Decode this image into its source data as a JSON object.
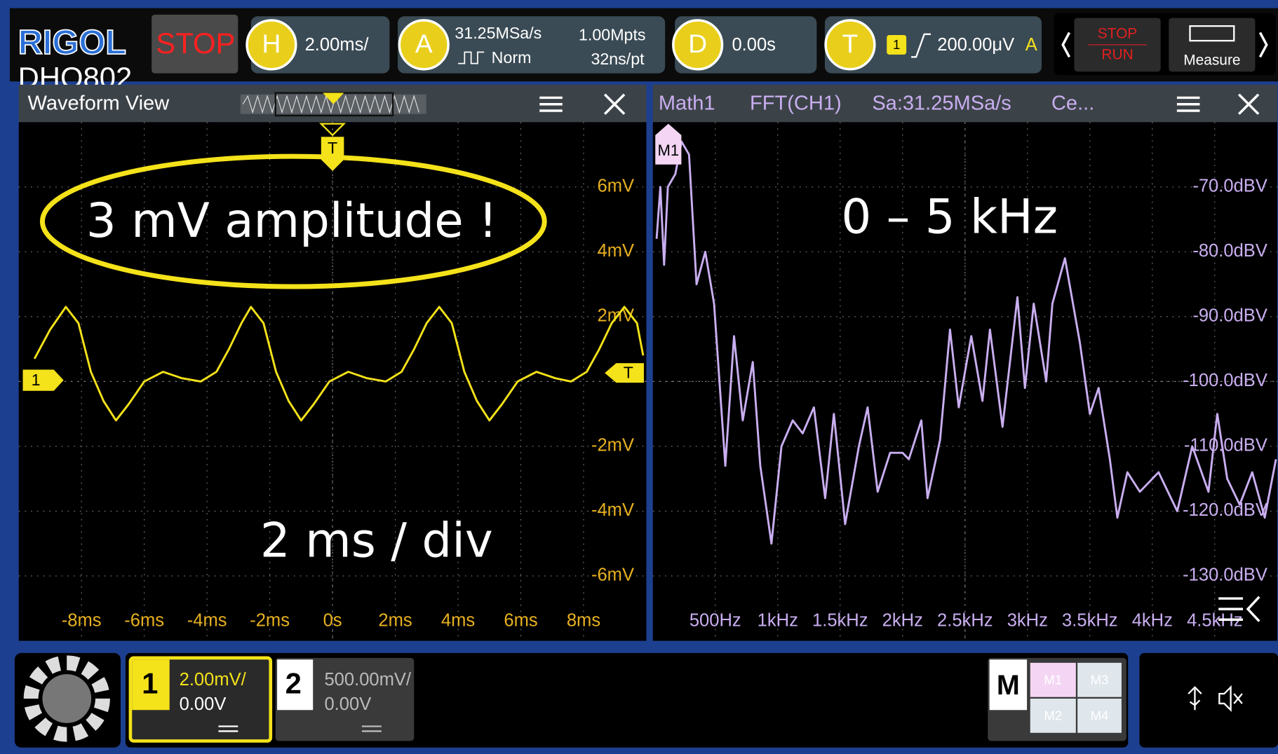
{
  "toolbar": {
    "brand": "RIGOL",
    "model": "DHO802",
    "run_state": "STOP",
    "horizontal": {
      "key": "H",
      "scale": "2.00ms/"
    },
    "acquire": {
      "key": "A",
      "rate": "31.25MSa/s",
      "mode": "Norm",
      "depth": "1.00Mpts",
      "resolution": "32ns/pt"
    },
    "delay": {
      "key": "D",
      "offset": "0.00s"
    },
    "trigger": {
      "key": "T",
      "source": "1",
      "level": "200.00μV",
      "sweep": "A"
    },
    "stop_run": {
      "stop": "STOP",
      "run": "RUN"
    },
    "measure": "Measure"
  },
  "panels": {
    "waveform": {
      "title": "Waveform View"
    },
    "math": {
      "name": "Math1",
      "op": "FFT(CH1)",
      "rate": "Sa:31.25MSa/s",
      "center": "Ce..."
    }
  },
  "markers": {
    "channel": "1",
    "trigger_top": "T",
    "trigger_right": "T",
    "math": "M1"
  },
  "annotations": {
    "amplitude": "3 mV amplitude !",
    "band": "0 – 5 kHz",
    "timebase": "2 ms / div"
  },
  "chart_data": [
    {
      "type": "line",
      "color": "#f4e21a",
      "x": [
        -9.5,
        -9.0,
        -8.5,
        -8.1,
        -7.7,
        -7.3,
        -6.9,
        -6.5,
        -6.0,
        -5.4,
        -4.8,
        -4.2,
        -3.7,
        -3.3,
        -2.9,
        -2.6,
        -2.2,
        -1.8,
        -1.4,
        -1.0,
        -0.6,
        -0.1,
        0.5,
        1.1,
        1.7,
        2.2,
        2.6,
        3.0,
        3.4,
        3.8,
        4.2,
        4.6,
        5.0,
        5.4,
        5.9,
        6.5,
        7.1,
        7.6,
        8.1,
        8.5,
        8.9,
        9.3,
        9.7,
        9.9
      ],
      "values": [
        0.7,
        1.6,
        2.3,
        1.8,
        0.3,
        -0.6,
        -1.2,
        -0.7,
        0,
        0.3,
        0.1,
        0,
        0.3,
        1.0,
        1.8,
        2.3,
        1.8,
        0.3,
        -0.6,
        -1.2,
        -0.7,
        0,
        0.3,
        0.1,
        0,
        0.3,
        1.0,
        1.8,
        2.3,
        1.8,
        0.3,
        -0.6,
        -1.2,
        -0.7,
        0,
        0.3,
        0.1,
        0,
        0.3,
        1.0,
        1.8,
        2.3,
        1.8,
        0.8
      ],
      "xlim": [
        -10,
        10
      ],
      "ylim": [
        -8,
        8
      ],
      "grid": true,
      "xticks": [
        {
          "value": -8,
          "label": "-8ms"
        },
        {
          "value": -6,
          "label": "-6ms"
        },
        {
          "value": -4,
          "label": "-4ms"
        },
        {
          "value": -2,
          "label": "-2ms"
        },
        {
          "value": 0,
          "label": "0s"
        },
        {
          "value": 2,
          "label": "2ms"
        },
        {
          "value": 4,
          "label": "4ms"
        },
        {
          "value": 6,
          "label": "6ms"
        },
        {
          "value": 8,
          "label": "8ms"
        }
      ],
      "yticks": [
        {
          "value": 6,
          "label": "6mV"
        },
        {
          "value": 4,
          "label": "4mV"
        },
        {
          "value": 2,
          "label": "2mV"
        },
        {
          "value": -2,
          "label": "-2mV"
        },
        {
          "value": -4,
          "label": "-4mV"
        },
        {
          "value": -6,
          "label": "-6mV"
        }
      ]
    },
    {
      "type": "line",
      "color": "#c9aef0",
      "x": [
        30,
        60,
        90,
        120,
        180,
        230,
        290,
        350,
        420,
        490,
        580,
        650,
        720,
        800,
        860,
        950,
        1030,
        1120,
        1200,
        1290,
        1380,
        1450,
        1540,
        1650,
        1720,
        1800,
        1900,
        2000,
        2050,
        2150,
        2200,
        2300,
        2380,
        2450,
        2550,
        2640,
        2700,
        2800,
        2920,
        2980,
        3050,
        3150,
        3200,
        3300,
        3420,
        3500,
        3570,
        3660,
        3720,
        3800,
        3900,
        4050,
        4200,
        4320,
        4450,
        4520,
        4600,
        4700,
        4800,
        4900,
        4990
      ],
      "values": [
        -78,
        -70,
        -82,
        -70,
        -68,
        -63,
        -65,
        -85,
        -80,
        -88,
        -113,
        -93,
        -106,
        -97,
        -113,
        -125,
        -110,
        -106,
        -108,
        -104,
        -118,
        -105,
        -122,
        -110,
        -104,
        -117,
        -111,
        -111,
        -112,
        -106,
        -118,
        -109,
        -92,
        -104,
        -93,
        -103,
        -92,
        -107,
        -87,
        -101,
        -88,
        -100,
        -88,
        -81,
        -94,
        -105,
        -101,
        -112,
        -121,
        -114,
        -117,
        -114,
        -120,
        -110,
        -117,
        -105,
        -115,
        -119,
        -114,
        -121,
        -112
      ],
      "xlim": [
        0,
        5000
      ],
      "ylim": [
        -140,
        -60
      ],
      "grid": true,
      "xticks": [
        {
          "value": 500,
          "label": "500Hz"
        },
        {
          "value": 1000,
          "label": "1kHz"
        },
        {
          "value": 1500,
          "label": "1.5kHz"
        },
        {
          "value": 2000,
          "label": "2kHz"
        },
        {
          "value": 2500,
          "label": "2.5kHz"
        },
        {
          "value": 3000,
          "label": "3kHz"
        },
        {
          "value": 3500,
          "label": "3.5kHz"
        },
        {
          "value": 4000,
          "label": "4kHz"
        },
        {
          "value": 4500,
          "label": "4.5kHz"
        }
      ],
      "yticks": [
        {
          "value": -70,
          "label": "-70.0dBV"
        },
        {
          "value": -80,
          "label": "-80.0dBV"
        },
        {
          "value": -90,
          "label": "-90.0dBV"
        },
        {
          "value": -100,
          "label": "-100.0dBV"
        },
        {
          "value": -110,
          "label": "-110.0dBV"
        },
        {
          "value": -120,
          "label": "-120.0dBV"
        },
        {
          "value": -130,
          "label": "-130.0dBV"
        }
      ]
    }
  ],
  "footer": {
    "ch1": {
      "num": "1",
      "scale": "2.00mV/",
      "offset": "0.00V"
    },
    "ch2": {
      "num": "2",
      "scale": "500.00mV/",
      "offset": "0.00V"
    },
    "math": {
      "key": "M",
      "slots": [
        "M1",
        "M3",
        "M2",
        "M4"
      ]
    }
  }
}
